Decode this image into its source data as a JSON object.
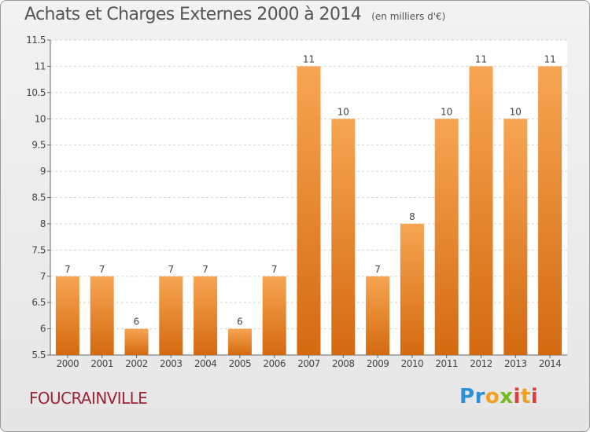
{
  "chart_data": {
    "type": "bar",
    "title": "Achats et Charges Externes 2000 à 2014",
    "subtitle": "(en milliers d'€)",
    "categories": [
      "2000",
      "2001",
      "2002",
      "2003",
      "2004",
      "2005",
      "2006",
      "2007",
      "2008",
      "2009",
      "2010",
      "2011",
      "2012",
      "2013",
      "2014"
    ],
    "values": [
      7,
      7,
      6,
      7,
      7,
      6,
      7,
      11,
      10,
      7,
      8,
      10,
      11,
      10,
      11
    ],
    "ylim": [
      5.5,
      11.5
    ],
    "yticks": [
      5.5,
      6,
      6.5,
      7,
      7.5,
      8,
      8.5,
      9,
      9.5,
      10,
      10.5,
      11,
      11.5
    ],
    "ytick_labels": [
      "5.5",
      "6",
      "6.5",
      "7",
      "7.5",
      "8",
      "8.5",
      "9",
      "9.5",
      "10",
      "10.5",
      "11",
      "11.5"
    ],
    "grid": true,
    "bar_color": "#f0922e",
    "bar_color_dark": "#d46a10"
  },
  "commune": "FOUCRAINVILLE",
  "logo": {
    "text": "Proxiti",
    "colors": [
      "#2d8fd6",
      "#f0a020",
      "#74b91f",
      "#e23b3b"
    ]
  }
}
